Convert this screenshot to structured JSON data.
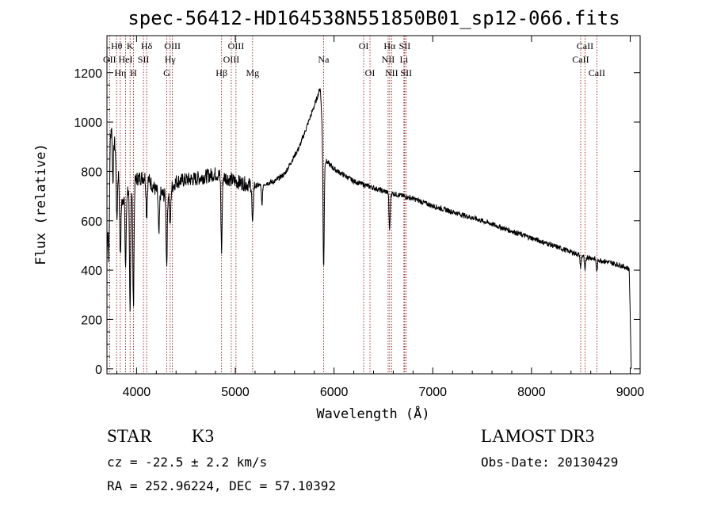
{
  "header": {
    "title": "spec-56412-HD164538N551850B01_sp12-066.fits"
  },
  "footer": {
    "class_label": "STAR",
    "subclass": "K3",
    "survey": "LAMOST DR3",
    "cz": "cz = -22.5 ± 2.2 km/s",
    "obs_date": "Obs-Date: 20130429",
    "coords": "RA = 252.96224, DEC =  57.10392"
  },
  "chart_data": {
    "type": "line",
    "title": "spec-56412-HD164538N551850B01_sp12-066.fits",
    "xlabel": "Wavelength (Å)",
    "ylabel": "Flux (relative)",
    "xlim": [
      3700,
      9100
    ],
    "ylim": [
      -20,
      1350
    ],
    "x_ticks": [
      4000,
      5000,
      6000,
      7000,
      8000,
      9000
    ],
    "y_ticks": [
      0,
      200,
      400,
      600,
      800,
      1000,
      1200
    ],
    "line_color": "#000000",
    "marker_color": "#8b0000",
    "spectral_lines": [
      {
        "label": "OII",
        "wavelength": 3727,
        "row": 2
      },
      {
        "label": "Hθ",
        "wavelength": 3798,
        "row": 1
      },
      {
        "label": "Hη",
        "wavelength": 3835,
        "row": 3
      },
      {
        "label": "HeI",
        "wavelength": 3889,
        "row": 2
      },
      {
        "label": "K",
        "wavelength": 3934,
        "row": 1
      },
      {
        "label": "H",
        "wavelength": 3968,
        "row": 3
      },
      {
        "label": "SII",
        "wavelength": 4070,
        "row": 2
      },
      {
        "label": "Hδ",
        "wavelength": 4102,
        "row": 1
      },
      {
        "label": "G",
        "wavelength": 4305,
        "row": 3
      },
      {
        "label": "Hγ",
        "wavelength": 4340,
        "row": 2
      },
      {
        "label": "OIII",
        "wavelength": 4363,
        "row": 1
      },
      {
        "label": "Hβ",
        "wavelength": 4861,
        "row": 3
      },
      {
        "label": "OIII",
        "wavelength": 4959,
        "row": 2
      },
      {
        "label": "OIII",
        "wavelength": 5007,
        "row": 1
      },
      {
        "label": "Mg",
        "wavelength": 5175,
        "row": 3
      },
      {
        "label": "Na",
        "wavelength": 5894,
        "row": 2
      },
      {
        "label": "OI",
        "wavelength": 6300,
        "row": 1
      },
      {
        "label": "OI",
        "wavelength": 6364,
        "row": 3
      },
      {
        "label": "NII",
        "wavelength": 6548,
        "row": 2
      },
      {
        "label": "Hα",
        "wavelength": 6563,
        "row": 1
      },
      {
        "label": "NII",
        "wavelength": 6583,
        "row": 3
      },
      {
        "label": "Li",
        "wavelength": 6708,
        "row": 2
      },
      {
        "label": "SII",
        "wavelength": 6716,
        "row": 1
      },
      {
        "label": "SII",
        "wavelength": 6731,
        "row": 3
      },
      {
        "label": "CaII",
        "wavelength": 8498,
        "row": 2
      },
      {
        "label": "CaII",
        "wavelength": 8542,
        "row": 1
      },
      {
        "label": "CaII",
        "wavelength": 8662,
        "row": 3
      }
    ],
    "continuum": [
      {
        "x": 3700,
        "y": 440
      },
      {
        "x": 3720,
        "y": 900
      },
      {
        "x": 3750,
        "y": 1000
      },
      {
        "x": 3800,
        "y": 850
      },
      {
        "x": 3850,
        "y": 680
      },
      {
        "x": 3900,
        "y": 720
      },
      {
        "x": 4000,
        "y": 770
      },
      {
        "x": 4100,
        "y": 780
      },
      {
        "x": 4200,
        "y": 720
      },
      {
        "x": 4300,
        "y": 700
      },
      {
        "x": 4400,
        "y": 760
      },
      {
        "x": 4600,
        "y": 770
      },
      {
        "x": 4800,
        "y": 790
      },
      {
        "x": 5000,
        "y": 760
      },
      {
        "x": 5200,
        "y": 740
      },
      {
        "x": 5400,
        "y": 760
      },
      {
        "x": 5500,
        "y": 790
      },
      {
        "x": 5650,
        "y": 900
      },
      {
        "x": 5750,
        "y": 1010
      },
      {
        "x": 5830,
        "y": 1100
      },
      {
        "x": 5860,
        "y": 1140
      },
      {
        "x": 5900,
        "y": 850
      },
      {
        "x": 6000,
        "y": 810
      },
      {
        "x": 6200,
        "y": 760
      },
      {
        "x": 6500,
        "y": 720
      },
      {
        "x": 6800,
        "y": 690
      },
      {
        "x": 7000,
        "y": 660
      },
      {
        "x": 7500,
        "y": 600
      },
      {
        "x": 8000,
        "y": 530
      },
      {
        "x": 8500,
        "y": 460
      },
      {
        "x": 8900,
        "y": 420
      },
      {
        "x": 8990,
        "y": 405
      },
      {
        "x": 9005,
        "y": 100
      },
      {
        "x": 9010,
        "y": 0
      }
    ],
    "absorption_features": [
      {
        "x": 3720,
        "depth": 420
      },
      {
        "x": 3760,
        "depth": 200
      },
      {
        "x": 3800,
        "depth": 250
      },
      {
        "x": 3835,
        "depth": 280
      },
      {
        "x": 3889,
        "depth": 300
      },
      {
        "x": 3934,
        "depth": 520
      },
      {
        "x": 3968,
        "depth": 500
      },
      {
        "x": 4102,
        "depth": 160
      },
      {
        "x": 4226,
        "depth": 180
      },
      {
        "x": 4305,
        "depth": 280
      },
      {
        "x": 4340,
        "depth": 150
      },
      {
        "x": 4861,
        "depth": 300
      },
      {
        "x": 5175,
        "depth": 170
      },
      {
        "x": 5270,
        "depth": 80
      },
      {
        "x": 5894,
        "depth": 480
      },
      {
        "x": 6563,
        "depth": 150
      },
      {
        "x": 8498,
        "depth": 50
      },
      {
        "x": 8542,
        "depth": 60
      },
      {
        "x": 8662,
        "depth": 50
      }
    ]
  }
}
